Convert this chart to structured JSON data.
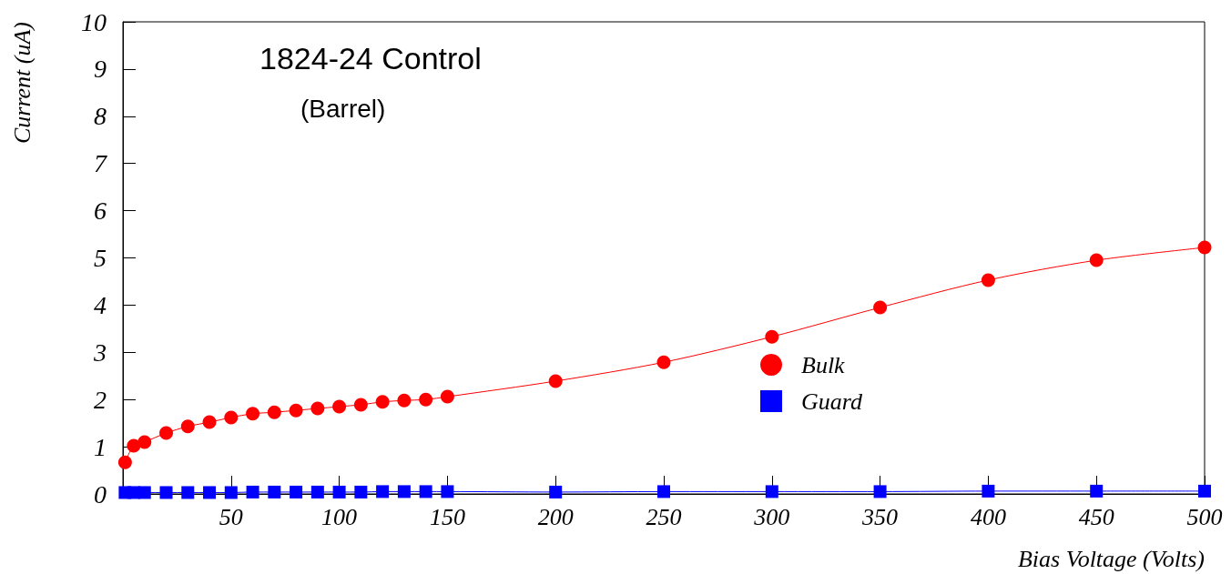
{
  "chart_data": {
    "type": "line",
    "title": "1824-24 Control",
    "subtitle": "(Barrel)",
    "xlabel": "Bias Voltage (Volts)",
    "ylabel": "Current (uA)",
    "x": [
      1,
      5,
      10,
      20,
      30,
      40,
      50,
      60,
      70,
      80,
      90,
      100,
      110,
      120,
      130,
      140,
      150,
      200,
      250,
      300,
      350,
      400,
      450,
      500
    ],
    "series": [
      {
        "name": "Bulk",
        "color": "#ff0000",
        "marker": "circle",
        "values": [
          0.67,
          1.02,
          1.1,
          1.29,
          1.43,
          1.52,
          1.62,
          1.7,
          1.73,
          1.77,
          1.81,
          1.85,
          1.89,
          1.95,
          1.98,
          2.0,
          2.06,
          2.39,
          2.79,
          3.33,
          3.95,
          4.53,
          4.95,
          5.22
        ]
      },
      {
        "name": "Guard",
        "color": "#0000ff",
        "marker": "square",
        "values": [
          0.03,
          0.03,
          0.03,
          0.03,
          0.03,
          0.03,
          0.03,
          0.04,
          0.04,
          0.04,
          0.04,
          0.04,
          0.04,
          0.05,
          0.05,
          0.05,
          0.05,
          0.04,
          0.05,
          0.05,
          0.05,
          0.06,
          0.06,
          0.06
        ]
      }
    ],
    "xlim": [
      0,
      500
    ],
    "xticks": [
      50,
      100,
      150,
      200,
      250,
      300,
      350,
      400,
      450,
      500
    ],
    "ylim": [
      0,
      10
    ],
    "yticks": [
      0,
      1,
      2,
      3,
      4,
      5,
      6,
      7,
      8,
      9,
      10
    ],
    "grid": false,
    "legend": "right"
  }
}
